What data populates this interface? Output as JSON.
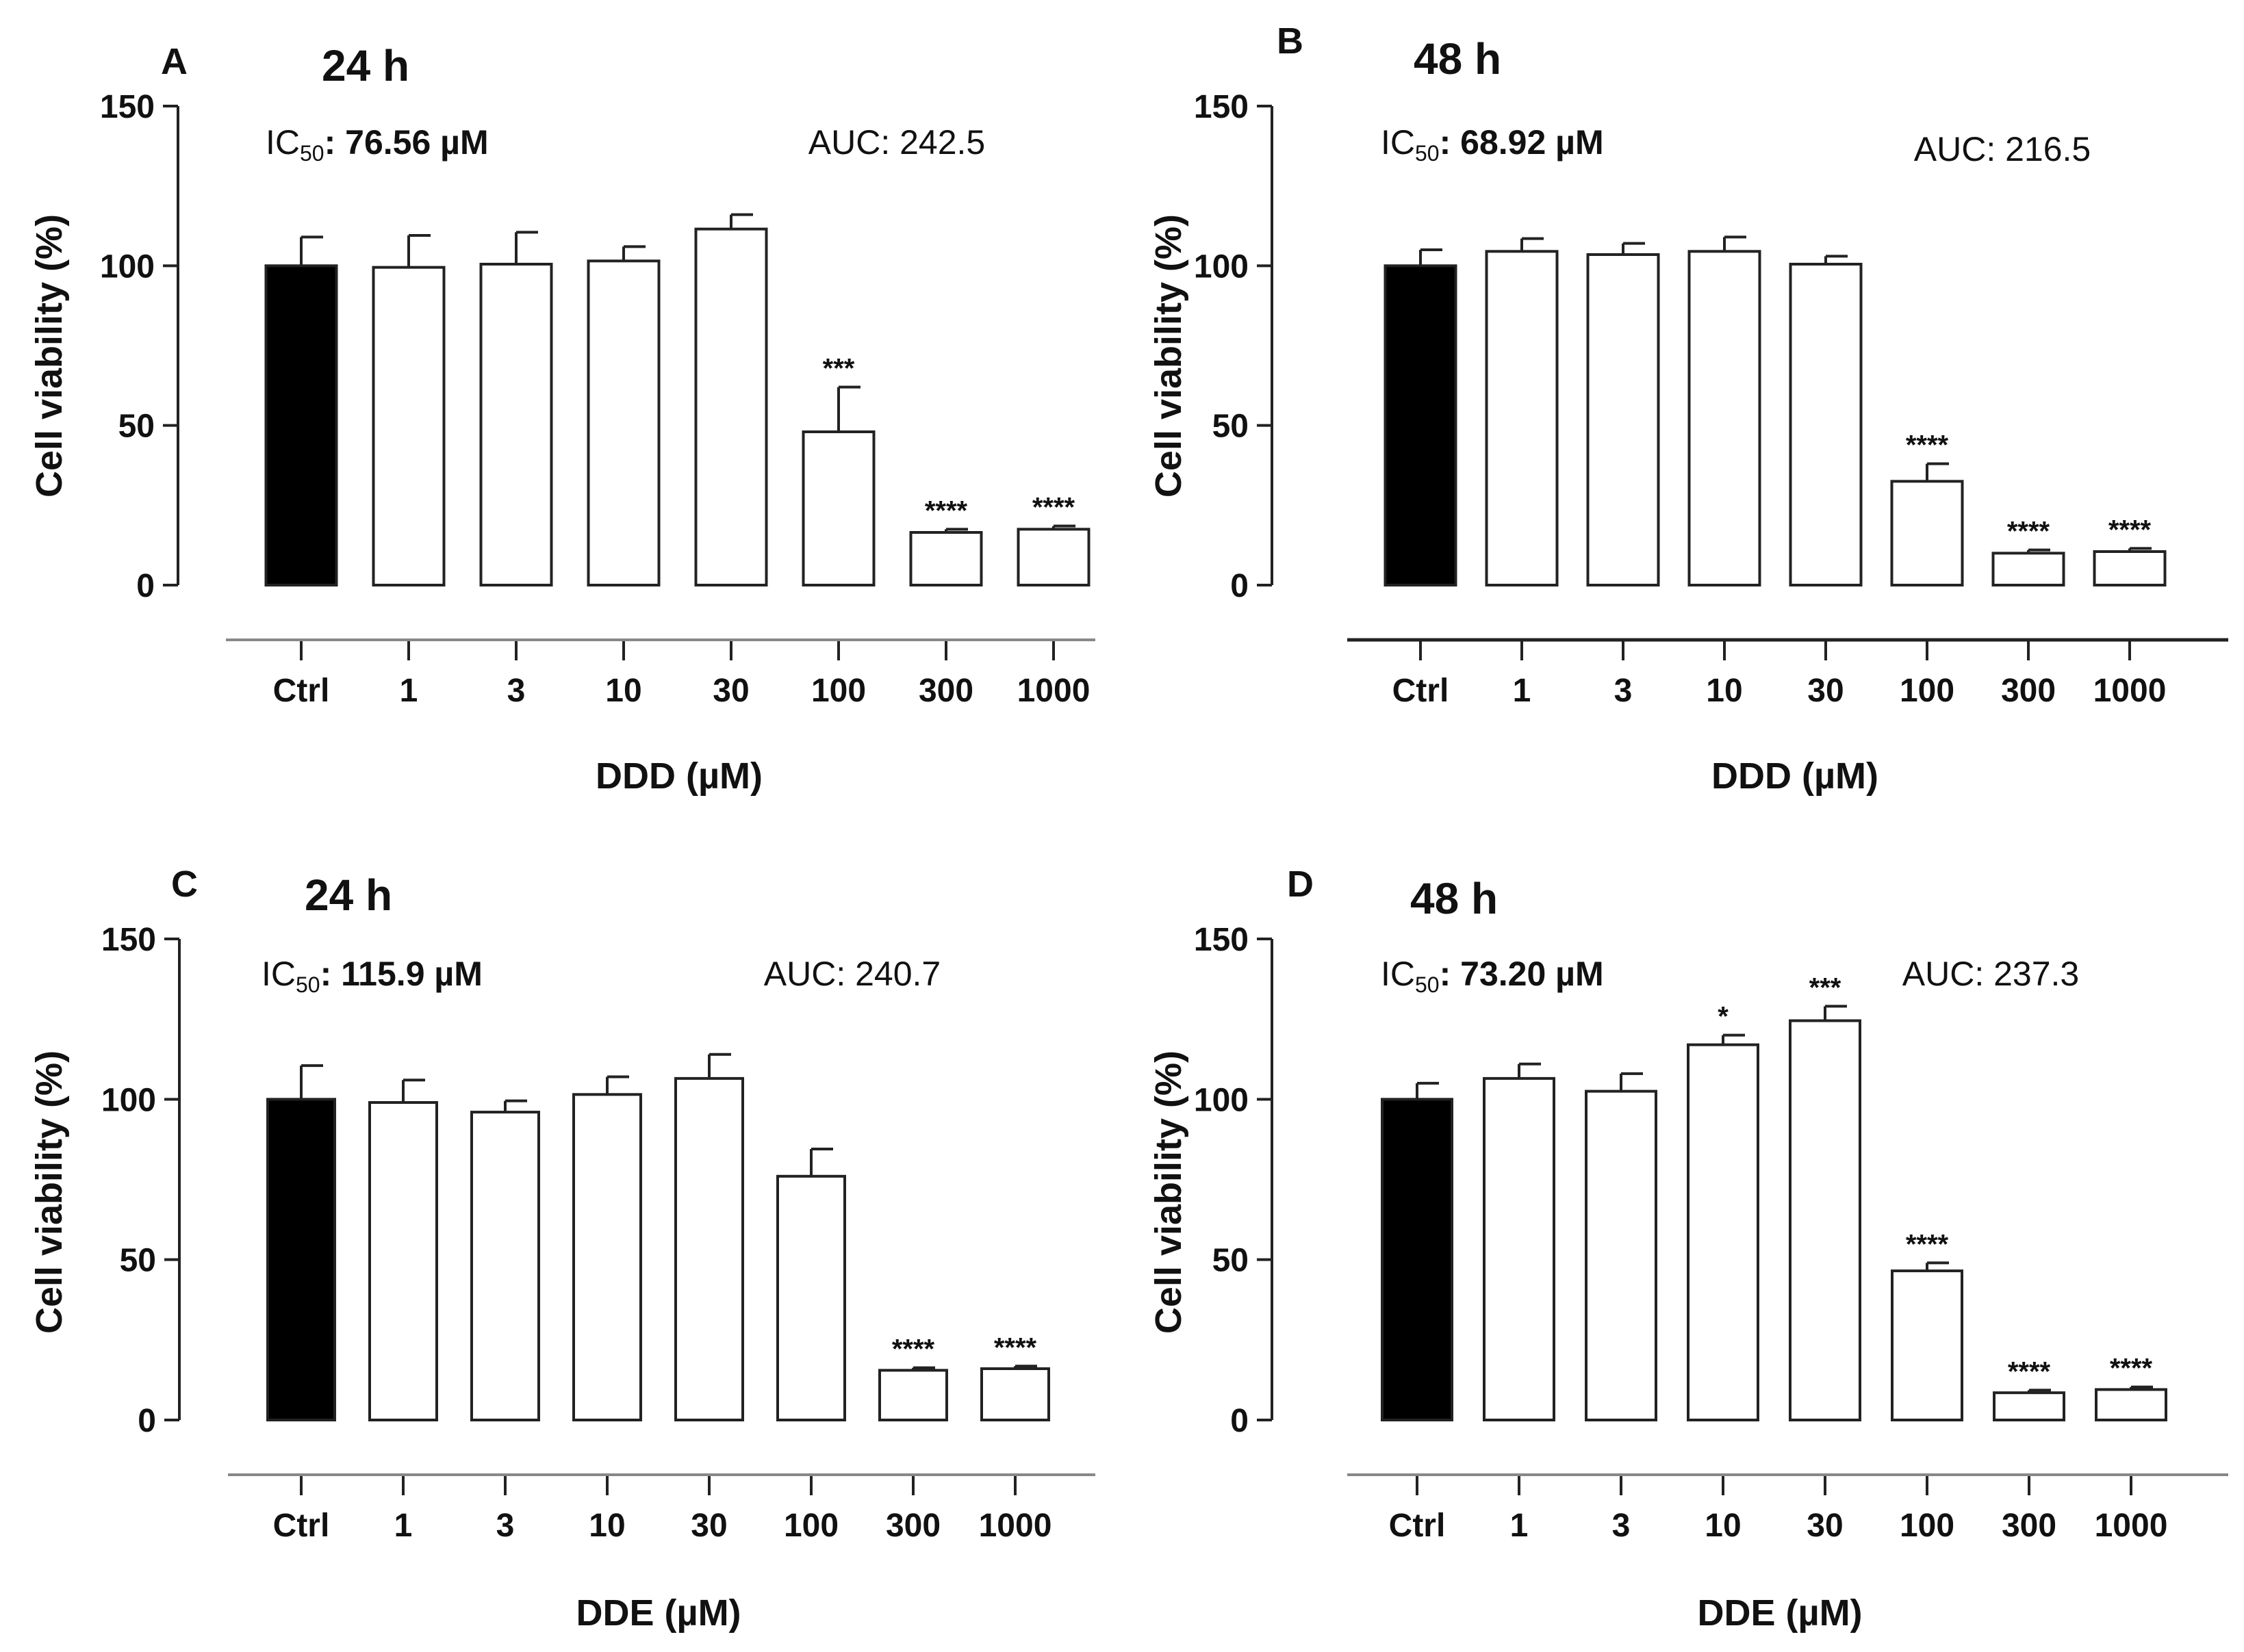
{
  "colors": {
    "ctrl_bar": "#000000",
    "treated_bar": "#ffffff",
    "axis": "#222222",
    "baseline_gray": "#888888"
  },
  "chart_data": [
    {
      "id": "A",
      "type": "bar",
      "panel_letter": "A",
      "title": "24 h",
      "ic50_prefix": "IC",
      "ic50_sub": "50",
      "ic50_value": ": 76.56 µM",
      "auc": "AUC: 242.5",
      "xlabel": "DDD (µM)",
      "ylabel": "Cell viability (%)",
      "ylim": [
        0,
        150
      ],
      "yticks": [
        "0",
        "50",
        "100",
        "150"
      ],
      "categories": [
        "Ctrl",
        "1",
        "3",
        "10",
        "30",
        "100",
        "300",
        "1000"
      ],
      "values": [
        100,
        99.5,
        100.5,
        101.5,
        111.5,
        48,
        16.5,
        17.5
      ],
      "errors": [
        9,
        10,
        10,
        4.5,
        4.5,
        14,
        1,
        1
      ],
      "significance": [
        "",
        "",
        "",
        "",
        "",
        "***",
        "****",
        "****"
      ]
    },
    {
      "id": "B",
      "type": "bar",
      "panel_letter": "B",
      "title": "48 h",
      "ic50_prefix": "IC",
      "ic50_sub": "50",
      "ic50_value": ": 68.92 µM",
      "auc": "AUC: 216.5",
      "xlabel": "DDD (µM)",
      "ylabel": "Cell viability (%)",
      "ylim": [
        0,
        150
      ],
      "yticks": [
        "0",
        "50",
        "100",
        "150"
      ],
      "categories": [
        "Ctrl",
        "1",
        "3",
        "10",
        "30",
        "100",
        "300",
        "1000"
      ],
      "values": [
        100,
        104.5,
        103.5,
        104.5,
        100.5,
        32.5,
        10,
        10.5
      ],
      "errors": [
        5,
        4,
        3.5,
        4.5,
        2.5,
        5.5,
        1,
        1
      ],
      "significance": [
        "",
        "",
        "",
        "",
        "",
        "****",
        "****",
        "****"
      ]
    },
    {
      "id": "C",
      "type": "bar",
      "panel_letter": "C",
      "title": "24 h",
      "ic50_prefix": "IC",
      "ic50_sub": "50",
      "ic50_value": ": 115.9 µM",
      "auc": "AUC: 240.7",
      "xlabel": "DDE (µM)",
      "ylabel": "Cell viability (%)",
      "ylim": [
        0,
        150
      ],
      "yticks": [
        "0",
        "50",
        "100",
        "150"
      ],
      "categories": [
        "Ctrl",
        "1",
        "3",
        "10",
        "30",
        "100",
        "300",
        "1000"
      ],
      "values": [
        100,
        99,
        96,
        101.5,
        106.5,
        76,
        15.5,
        16
      ],
      "errors": [
        10.5,
        7,
        3.5,
        5.5,
        7.5,
        8.5,
        0.8,
        0.8
      ],
      "significance": [
        "",
        "",
        "",
        "",
        "",
        "",
        "****",
        "****"
      ]
    },
    {
      "id": "D",
      "type": "bar",
      "panel_letter": "D",
      "title": "48 h",
      "ic50_prefix": "IC",
      "ic50_sub": "50",
      "ic50_value": ": 73.20 µM",
      "auc": "AUC: 237.3",
      "xlabel": "DDE (µM)",
      "ylabel": "Cell viability (%)",
      "ylim": [
        0,
        150
      ],
      "yticks": [
        "0",
        "50",
        "100",
        "150"
      ],
      "categories": [
        "Ctrl",
        "1",
        "3",
        "10",
        "30",
        "100",
        "300",
        "1000"
      ],
      "values": [
        100,
        106.5,
        102.5,
        117,
        124.5,
        46.5,
        8.5,
        9.5
      ],
      "errors": [
        5,
        4.5,
        5.5,
        3,
        4.5,
        2.5,
        0.8,
        0.8
      ],
      "significance": [
        "",
        "",
        "",
        "*",
        "***",
        "****",
        "****",
        "****"
      ]
    }
  ]
}
